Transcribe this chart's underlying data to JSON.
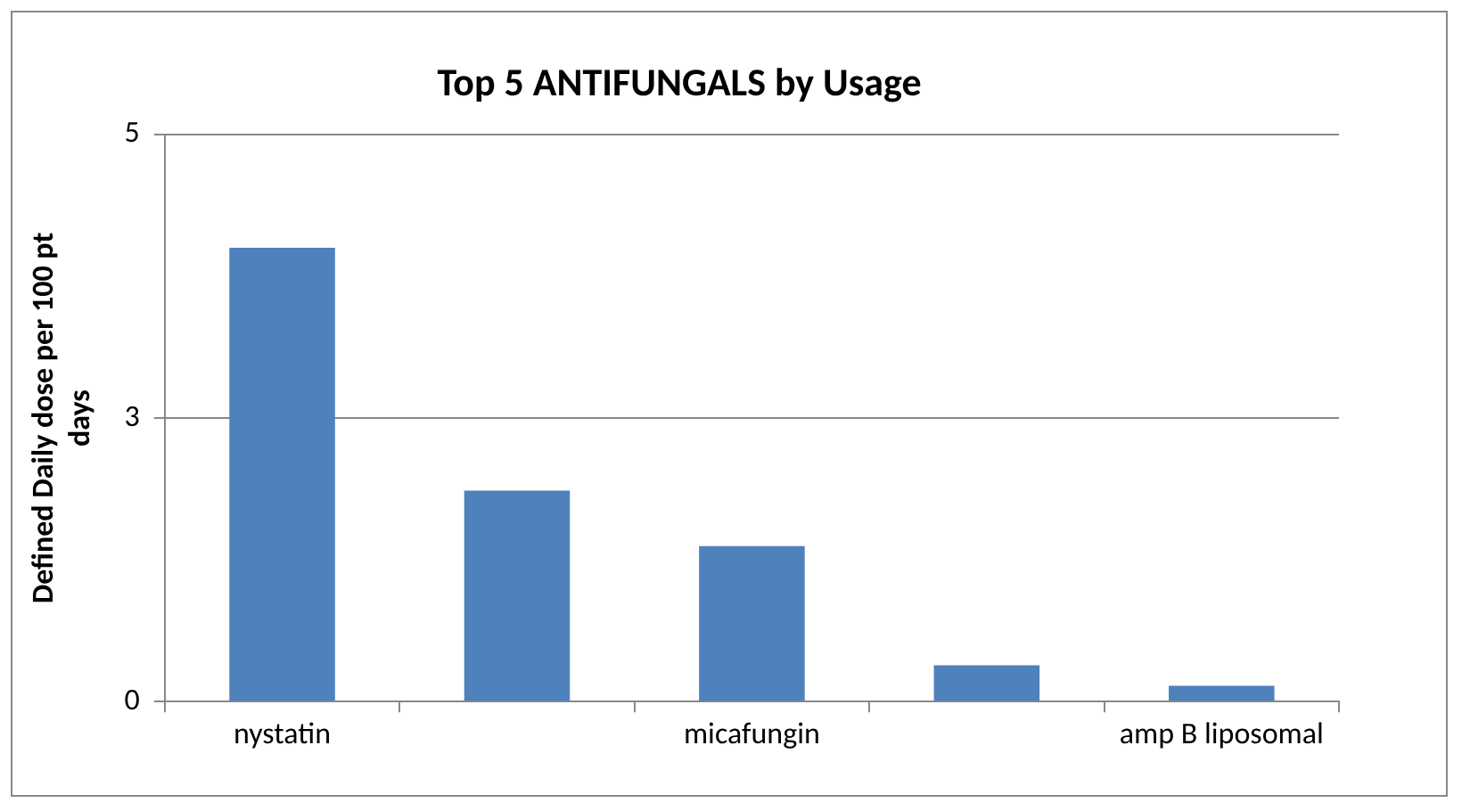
{
  "chart_data": {
    "type": "bar",
    "title": "Top 5 ANTIFUNGALS by Usage",
    "ylabel": "Defined Daily dose per 100 pt days",
    "categories": [
      "nystatin",
      null,
      "micafungin",
      null,
      "amp B liposomal"
    ],
    "values": [
      4.0,
      1.86,
      1.37,
      0.32,
      0.14
    ],
    "color": "#4f81bd",
    "ylim": [
      0,
      5
    ],
    "yticks": [
      0,
      {
        "value": 2.5,
        "label": "3"
      },
      5
    ],
    "grid": "y"
  }
}
